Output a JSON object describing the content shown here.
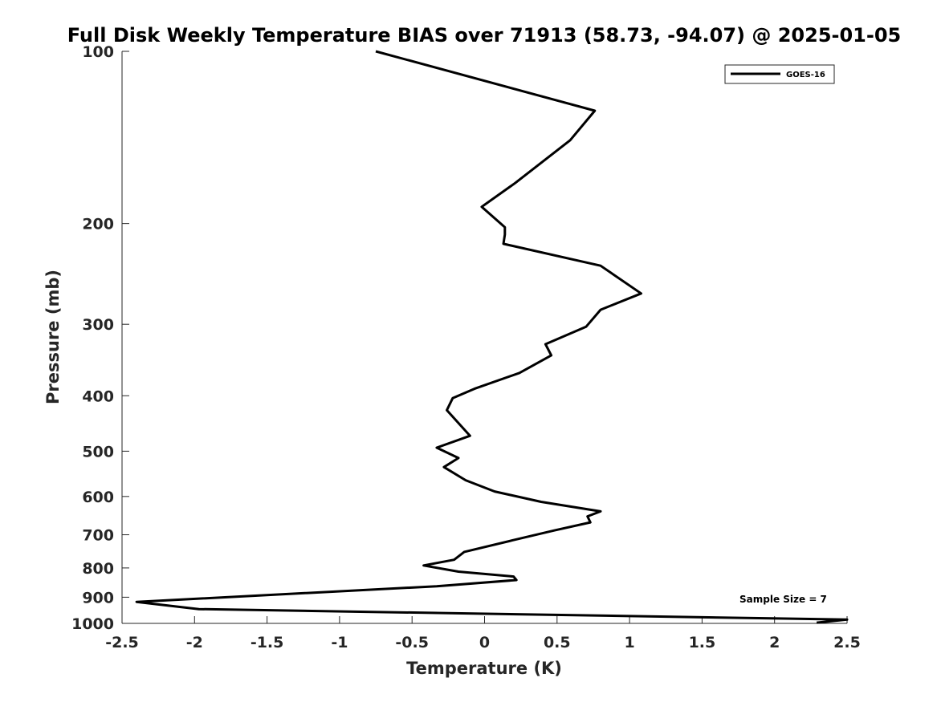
{
  "chart_data": {
    "type": "line",
    "title": "Full Disk Weekly Temperature BIAS over 71913 (58.73, -94.07) @ 2025-01-05",
    "xlabel": "Temperature (K)",
    "ylabel": "Pressure (mb)",
    "xlim": [
      -2.5,
      2.5
    ],
    "ylim": [
      100,
      1000
    ],
    "y_scale": "log",
    "y_reversed": true,
    "x_ticks": [
      -2.5,
      -2,
      -1.5,
      -1,
      -0.5,
      0,
      0.5,
      1,
      1.5,
      2,
      2.5
    ],
    "x_tick_labels": [
      "-2.5",
      "-2",
      "-1.5",
      "-1",
      "-0.5",
      "0",
      "0.5",
      "1",
      "1.5",
      "2",
      "2.5"
    ],
    "y_ticks": [
      100,
      200,
      300,
      400,
      500,
      600,
      700,
      800,
      900,
      1000
    ],
    "y_tick_labels": [
      "100",
      "200",
      "300",
      "400",
      "500",
      "600",
      "700",
      "800",
      "900",
      "1000"
    ],
    "grid": false,
    "legend_position": "top-right",
    "annotation": "Sample Size = 7",
    "series": [
      {
        "name": "GOES-16",
        "color": "#000000",
        "x": [
          -0.75,
          0.76,
          0.59,
          0.21,
          -0.02,
          0.14,
          0.14,
          0.13,
          0.8,
          1.08,
          0.8,
          0.7,
          0.42,
          0.46,
          0.24,
          -0.07,
          -0.22,
          -0.26,
          -0.1,
          -0.33,
          -0.18,
          -0.28,
          -0.13,
          0.07,
          0.39,
          0.8,
          0.71,
          0.73,
          0.48,
          0.19,
          -0.14,
          -0.21,
          -0.42,
          -0.18,
          0.2,
          0.22,
          -0.33,
          -2.4,
          -1.97,
          2.5,
          2.29
        ],
        "y": [
          100,
          127,
          143,
          170,
          187,
          203,
          209,
          217,
          237,
          265,
          283,
          303,
          325,
          340,
          365,
          389,
          404,
          424,
          470,
          493,
          514,
          533,
          562,
          588,
          613,
          637,
          650,
          666,
          688,
          716,
          750,
          774,
          792,
          812,
          828,
          840,
          861,
          917,
          944,
          985,
          997
        ]
      }
    ]
  }
}
